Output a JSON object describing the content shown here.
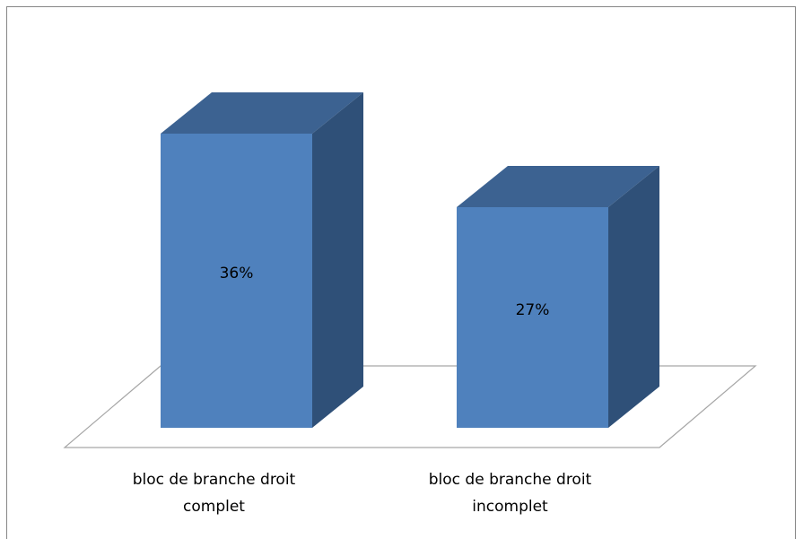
{
  "chart_data": {
    "type": "bar3d",
    "categories": [
      "bloc de branche droit complet",
      "bloc de branche droit incomplet"
    ],
    "values": [
      36,
      27
    ],
    "value_labels": [
      "36%",
      "27%"
    ],
    "color": "#4f81bd"
  }
}
